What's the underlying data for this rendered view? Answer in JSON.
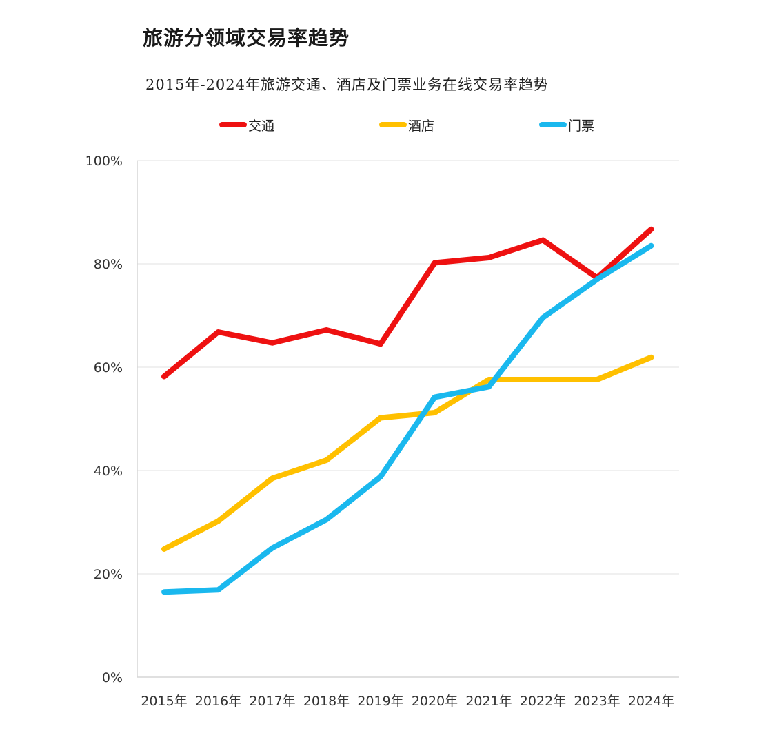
{
  "title": "旅游分领域交易率趋势",
  "subtitle": "2015年-2024年旅游交通、酒店及门票业务在线交易率趋势",
  "chart_data": {
    "type": "line",
    "title": "旅游分领域交易率趋势",
    "subtitle": "2015年-2024年旅游交通、酒店及门票业务在线交易率趋势",
    "categories": [
      "2015年",
      "2016年",
      "2017年",
      "2018年",
      "2019年",
      "2020年",
      "2021年",
      "2022年",
      "2023年",
      "2024年"
    ],
    "series": [
      {
        "name": "交通",
        "color": "#ee1111",
        "values": [
          58.2,
          66.8,
          64.7,
          67.2,
          64.5,
          80.2,
          81.2,
          84.6,
          77.3,
          86.7
        ]
      },
      {
        "name": "酒店",
        "color": "#ffc000",
        "values": [
          24.8,
          30.2,
          38.5,
          42.0,
          50.2,
          51.2,
          57.6,
          57.6,
          57.6,
          61.9
        ]
      },
      {
        "name": "门票",
        "color": "#1ab8ee",
        "values": [
          16.5,
          16.9,
          25.0,
          30.5,
          38.8,
          54.2,
          56.2,
          69.6,
          77.0,
          83.5
        ]
      }
    ],
    "y_ticks": [
      "0%",
      "20%",
      "40%",
      "60%",
      "80%",
      "100%"
    ],
    "ylim": [
      0,
      100
    ],
    "xlabel": "",
    "ylabel": "",
    "grid": true,
    "legend_position": "top"
  }
}
